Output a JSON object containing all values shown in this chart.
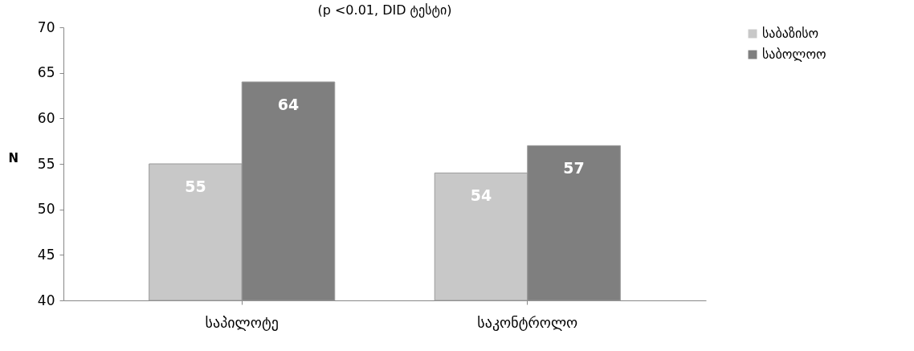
{
  "chart_data": {
    "type": "bar",
    "title": "(p <0.01, DID ტესტი)",
    "ylabel": "N",
    "categories": [
      "საპილოტე",
      "საკონტროლო"
    ],
    "series": [
      {
        "name": "საბაზისო",
        "color": "#c8c8c8",
        "values": [
          55,
          54
        ]
      },
      {
        "name": "საბოლოო",
        "color": "#7f7f7f",
        "values": [
          64,
          57
        ]
      }
    ],
    "ylim": [
      40,
      70
    ],
    "yticks": [
      40,
      45,
      50,
      55,
      60,
      65,
      70
    ],
    "grid": false,
    "legend": "right",
    "data_labels": true
  }
}
